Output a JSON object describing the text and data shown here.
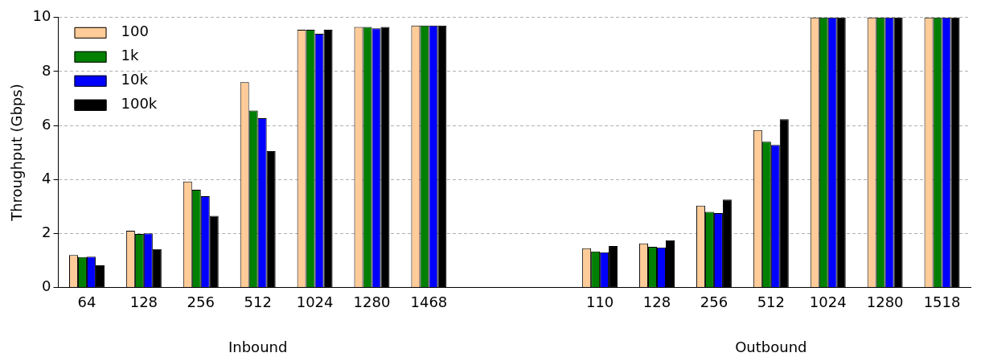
{
  "chart_data": {
    "type": "bar",
    "ylabel": "Throughput (Gbps)",
    "categories": [
      "64",
      "128",
      "256",
      "512",
      "1024",
      "1280",
      "1468",
      null,
      null,
      "110",
      "128",
      "256",
      "512",
      "1024",
      "1280",
      "1518"
    ],
    "series": [
      {
        "name": "100",
        "color": "#ffcc99",
        "values": [
          1.2,
          2.1,
          3.92,
          7.6,
          9.55,
          9.65,
          9.7,
          null,
          null,
          1.45,
          1.63,
          3.03,
          5.83,
          10,
          10,
          10
        ]
      },
      {
        "name": "1k",
        "color": "#008000",
        "values": [
          1.12,
          1.98,
          3.62,
          6.55,
          9.55,
          9.65,
          9.7,
          null,
          null,
          1.33,
          1.5,
          2.8,
          5.4,
          10,
          10,
          10
        ]
      },
      {
        "name": "10k",
        "color": "#0000ff",
        "values": [
          1.14,
          2.0,
          3.38,
          6.27,
          9.4,
          9.6,
          9.7,
          null,
          null,
          1.3,
          1.48,
          2.75,
          5.28,
          10,
          10,
          10
        ]
      },
      {
        "name": "100k",
        "color": "#000000",
        "values": [
          0.82,
          1.42,
          2.65,
          5.05,
          9.55,
          9.65,
          9.7,
          null,
          null,
          1.53,
          1.75,
          3.25,
          6.23,
          10,
          10,
          10
        ]
      }
    ],
    "ylim": [
      0,
      10
    ],
    "yticks": [
      0,
      2,
      4,
      6,
      8,
      10
    ],
    "grid": "y",
    "legend": "top left",
    "annotations": [
      "Inbound",
      "Outbound"
    ]
  }
}
